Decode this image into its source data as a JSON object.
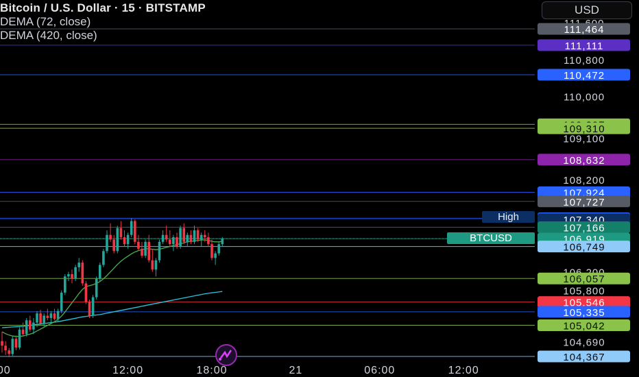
{
  "header": {
    "title": "Bitcoin / U.S. Dollar · 15 · BITSTAMP",
    "indicators": [
      "DEMA (72, close)",
      "DEMA (420, close)"
    ],
    "currency_button": "USD"
  },
  "scale_ticks": [
    {
      "label": "111,600",
      "value": 111600
    },
    {
      "label": "110,800",
      "value": 110800
    },
    {
      "label": "110,000",
      "value": 110000
    },
    {
      "label": "109,100",
      "value": 109100
    },
    {
      "label": "108,200",
      "value": 108200
    },
    {
      "label": "106,200",
      "value": 106200
    },
    {
      "label": "105,800",
      "value": 105800
    },
    {
      "label": "104,690",
      "value": 104690
    }
  ],
  "price_levels": [
    {
      "label": "111,464",
      "value": 111464,
      "color": "#565b66",
      "text_color": "#ffffff"
    },
    {
      "label": "111,111",
      "value": 111111,
      "color": "#5b2fc4",
      "text_color": "#ffffff"
    },
    {
      "label": "110,472",
      "value": 110472,
      "color": "#2962ff",
      "text_color": "#ffffff"
    },
    {
      "label": "109,397",
      "value": 109397,
      "color": "#8bc34a",
      "text_color": "#0b0b0b"
    },
    {
      "label": "109,310",
      "value": 109310,
      "color": "#8bc34a",
      "text_color": "#0b0b0b"
    },
    {
      "label": "108,632",
      "value": 108632,
      "color": "#8e24aa",
      "text_color": "#ffffff"
    },
    {
      "label": "107,924",
      "value": 107924,
      "color": "#2962ff",
      "text_color": "#ffffff"
    },
    {
      "label": "107,727",
      "value": 107727,
      "color": "#565b66",
      "text_color": "#ffffff"
    },
    {
      "label": "107,361",
      "value": 107361,
      "color": "#2962ff",
      "text_color": "#ffffff"
    },
    {
      "label": "107,340",
      "value": 107340,
      "color": "#0b2e63",
      "text_color": "#ffffff"
    },
    {
      "label": "107,166",
      "value": 107166,
      "color": "#14806a",
      "text_color": "#ffffff"
    },
    {
      "label": "106,919",
      "value": 106919,
      "color": "#1e9a83",
      "text_color": "#ffffff"
    },
    {
      "label": "106,749",
      "value": 106749,
      "color": "#90caf9",
      "text_color": "#0b0b0b"
    },
    {
      "label": "106,057",
      "value": 106057,
      "color": "#8bc34a",
      "text_color": "#0b0b0b"
    },
    {
      "label": "105,546",
      "value": 105546,
      "color": "#f23645",
      "text_color": "#ffffff"
    },
    {
      "label": "105,335",
      "value": 105335,
      "color": "#2962ff",
      "text_color": "#ffffff"
    },
    {
      "label": "105,042",
      "value": 105042,
      "color": "#8bc34a",
      "text_color": "#0b0b0b"
    },
    {
      "label": "104,367",
      "value": 104367,
      "color": "#90caf9",
      "text_color": "#0b0b0b"
    }
  ],
  "time_axis": [
    {
      "label": ":00",
      "bar": 0
    },
    {
      "label": "12:00",
      "bar": 36
    },
    {
      "label": "18:00",
      "bar": 60
    },
    {
      "label": "21",
      "bar": 84
    },
    {
      "label": "06:00",
      "bar": 108
    },
    {
      "label": "12:00",
      "bar": 132
    }
  ],
  "tags": {
    "high_label": "High",
    "symbol_label": "BTCUSD"
  },
  "colors": {
    "up": "#26a69a",
    "down": "#f23645",
    "dema_fast": "#4caf50",
    "dema_slow": "#26c6da"
  },
  "chart_data": {
    "type": "candlestick",
    "symbol": "BTCUSD",
    "interval": "15",
    "ylim": [
      104300,
      111650
    ],
    "candles": [
      [
        104700,
        104900,
        104450,
        104600
      ],
      [
        104600,
        104700,
        104400,
        104500
      ],
      [
        104500,
        104550,
        104350,
        104420
      ],
      [
        104420,
        104800,
        104380,
        104750
      ],
      [
        104750,
        104820,
        104500,
        104560
      ],
      [
        104560,
        105000,
        104520,
        104950
      ],
      [
        104950,
        105100,
        104800,
        104850
      ],
      [
        104850,
        105200,
        104800,
        105150
      ],
      [
        105150,
        105250,
        104900,
        104950
      ],
      [
        104950,
        105200,
        104850,
        105100
      ],
      [
        105100,
        105350,
        105000,
        105300
      ],
      [
        105300,
        105380,
        105050,
        105080
      ],
      [
        105080,
        105300,
        105000,
        105250
      ],
      [
        105250,
        105400,
        105150,
        105200
      ],
      [
        105200,
        105350,
        105100,
        105300
      ],
      [
        105300,
        105400,
        105150,
        105180
      ],
      [
        105180,
        105400,
        105120,
        105350
      ],
      [
        105350,
        105800,
        105300,
        105750
      ],
      [
        105750,
        106150,
        105700,
        106100
      ],
      [
        106100,
        106200,
        106000,
        106150
      ],
      [
        106150,
        106250,
        105950,
        106050
      ],
      [
        106050,
        106350,
        106000,
        106300
      ],
      [
        106300,
        106500,
        106200,
        106400
      ],
      [
        106400,
        106450,
        105900,
        105950
      ],
      [
        105950,
        106000,
        105500,
        105550
      ],
      [
        105550,
        105600,
        105200,
        105250
      ],
      [
        105250,
        105700,
        105200,
        105650
      ],
      [
        105650,
        106100,
        105600,
        106050
      ],
      [
        106050,
        106400,
        106000,
        106350
      ],
      [
        106350,
        106700,
        106300,
        106650
      ],
      [
        106650,
        107100,
        106600,
        107000
      ],
      [
        107000,
        107250,
        106850,
        106900
      ],
      [
        106900,
        107000,
        106600,
        106650
      ],
      [
        106650,
        107200,
        106600,
        107150
      ],
      [
        107150,
        107300,
        106900,
        106950
      ],
      [
        106950,
        107100,
        106750,
        106800
      ],
      [
        106800,
        107050,
        106700,
        107000
      ],
      [
        107000,
        107360,
        106950,
        107300
      ],
      [
        107300,
        107340,
        106800,
        106850
      ],
      [
        106850,
        107000,
        106650,
        106700
      ],
      [
        106700,
        106850,
        106500,
        106550
      ],
      [
        106550,
        106900,
        106500,
        106850
      ],
      [
        106850,
        107000,
        106400,
        106450
      ],
      [
        106450,
        106700,
        106200,
        106250
      ],
      [
        106250,
        106500,
        106100,
        106450
      ],
      [
        106450,
        106900,
        106400,
        106850
      ],
      [
        106850,
        107100,
        106800,
        107000
      ],
      [
        107000,
        107200,
        106850,
        106900
      ],
      [
        106900,
        107100,
        106750,
        106800
      ],
      [
        106800,
        107000,
        106650,
        106950
      ],
      [
        106950,
        107050,
        106700,
        106750
      ],
      [
        106750,
        107200,
        106700,
        107150
      ],
      [
        107150,
        107250,
        106800,
        106850
      ],
      [
        106850,
        107050,
        106750,
        107000
      ],
      [
        107000,
        107100,
        106800,
        106850
      ],
      [
        106850,
        107200,
        106800,
        107100
      ],
      [
        107100,
        107150,
        106850,
        106900
      ],
      [
        106900,
        107050,
        106750,
        107000
      ],
      [
        107000,
        107100,
        106850,
        106950
      ],
      [
        106950,
        107050,
        106750,
        106800
      ],
      [
        106800,
        106900,
        106450,
        106500
      ],
      [
        106500,
        106650,
        106350,
        106600
      ],
      [
        106600,
        106850,
        106550,
        106800
      ],
      [
        106800,
        106950,
        106750,
        106919
      ]
    ],
    "dema_fast": [
      104900,
      104860,
      104830,
      104810,
      104800,
      104800,
      104810,
      104830,
      104850,
      104880,
      104920,
      104960,
      105000,
      105040,
      105080,
      105120,
      105170,
      105240,
      105330,
      105430,
      105530,
      105630,
      105730,
      105820,
      105880,
      105900,
      105920,
      105950,
      105990,
      106050,
      106120,
      106200,
      106280,
      106360,
      106430,
      106490,
      106540,
      106590,
      106630,
      106660,
      106680,
      106700,
      106700,
      106690,
      106680,
      106690,
      106710,
      106730,
      106750,
      106770,
      106790,
      106810,
      106830,
      106850,
      106860,
      106870,
      106880,
      106890,
      106890,
      106880,
      106860,
      106850,
      106850,
      106860
    ],
    "dema_slow": [
      104990,
      104995,
      105000,
      105005,
      105010,
      105015,
      105020,
      105030,
      105040,
      105050,
      105060,
      105070,
      105080,
      105090,
      105100,
      105110,
      105120,
      105135,
      105150,
      105165,
      105180,
      105195,
      105210,
      105225,
      105235,
      105245,
      105255,
      105265,
      105275,
      105290,
      105305,
      105320,
      105335,
      105350,
      105365,
      105380,
      105395,
      105410,
      105425,
      105440,
      105455,
      105470,
      105485,
      105500,
      105515,
      105530,
      105545,
      105560,
      105575,
      105590,
      105605,
      105620,
      105635,
      105650,
      105665,
      105680,
      105695,
      105710,
      105725,
      105735,
      105745,
      105755,
      105765,
      105775
    ]
  }
}
